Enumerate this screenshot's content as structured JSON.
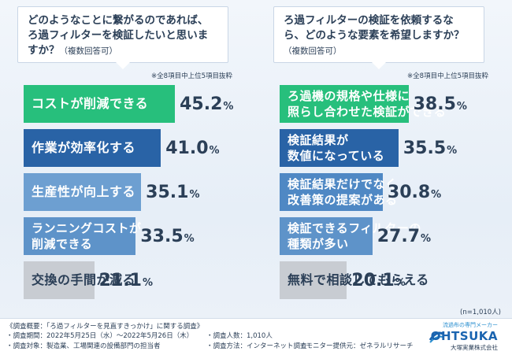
{
  "colors": {
    "green": "#27bf7c",
    "navy": "#2963a6",
    "mid_blue": "#4f88c4",
    "light_blue": "#6d9fd1",
    "steel_blue": "#5e93c9",
    "gray": "#c8ccd2",
    "text": "#2b3f57",
    "logo": "#1a64b0"
  },
  "chart_data": [
    {
      "type": "bar",
      "question": "どのようなことに繋がるのであれば、ろ過フィルターを検証したいと思いますか？",
      "question_suffix": "（複数回答可）",
      "note": "※全8項目中上位5項目抜粋",
      "categories": [
        "コストが削減できる",
        "作業が効率化する",
        "生産性が向上する",
        "ランニングコストが削減できる",
        "交換の手間が減る"
      ],
      "label_lines": [
        [
          "コストが削減できる"
        ],
        [
          "作業が効率化する"
        ],
        [
          "生産性が向上する"
        ],
        [
          "ランニングコストが",
          "削減できる"
        ],
        [
          "交換の手間が減る"
        ]
      ],
      "values": [
        45.2,
        41.0,
        35.1,
        33.5,
        21.1
      ],
      "value_labels": [
        "45.2",
        "41.0",
        "35.1",
        "33.5",
        "21.1"
      ],
      "unit": "%",
      "bar_colors": [
        "green",
        "navy",
        "light_blue",
        "steel_blue",
        "gray"
      ]
    },
    {
      "type": "bar",
      "question": "ろ過フィルターの検証を依頼するなら、どのような要素を希望しますか？",
      "question_suffix": "（複数回答可）",
      "note": "※全8項目中上位5項目抜粋",
      "categories": [
        "ろ過機の規格や仕様に照らし合わせた検証ができる",
        "検証結果が数値になっている",
        "検証結果だけでなく改善策の提案がある",
        "検証できるフィルターの種類が多い",
        "無料で相談してもらえる"
      ],
      "label_lines": [
        [
          "ろ過機の規格や仕様に",
          "照らし合わせた検証ができる"
        ],
        [
          "検証結果が",
          "数値になっている"
        ],
        [
          "検証結果だけでなく",
          "改善策の提案がある"
        ],
        [
          "検証できるフィルターの",
          "種類が多い"
        ],
        [
          "無料で相談してもらえる"
        ]
      ],
      "values": [
        38.5,
        35.5,
        30.8,
        27.7,
        20.1
      ],
      "value_labels": [
        "38.5",
        "35.5",
        "30.8",
        "27.7",
        "20.1"
      ],
      "unit": "%",
      "bar_colors": [
        "green",
        "navy",
        "mid_blue",
        "steel_blue",
        "gray"
      ]
    }
  ],
  "n_note": "(n=1,010人)",
  "footer": {
    "title": "《調査概要：「ろ過フィルターを見直すきっかけ」に関する調査》",
    "period": "・調査期間：2022年5月25日（水）～2022年5月26日（木）",
    "target": "・調査対象：製造業、工場関連の設備部門の担当者",
    "people": "・調査人数：1,010人",
    "method": "・調査方法：インターネット調査",
    "monitor": "・モニター提供元：ゼネラルリサーチ"
  },
  "logo": {
    "tagline": "流過布の専門メーカー",
    "word": "OHTSUKA",
    "company": "大塚実業株式会社"
  }
}
